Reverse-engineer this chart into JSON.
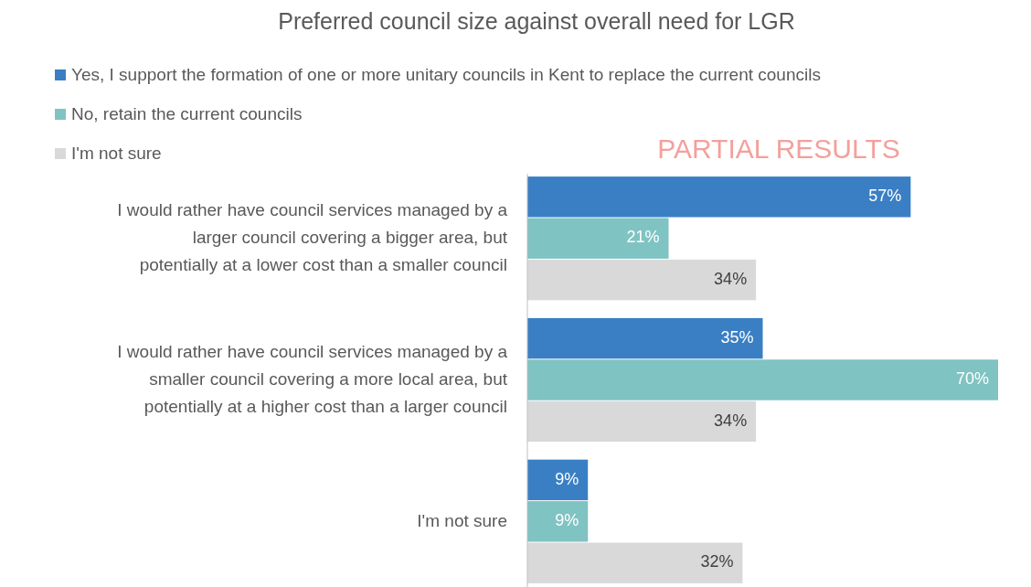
{
  "chart_data": {
    "type": "bar",
    "orientation": "horizontal",
    "title": "Preferred council size against overall need for LGR",
    "categories": [
      "I would rather have council services managed by a larger council covering a bigger area, but potentially at a lower cost than a smaller council",
      "I would rather have council services managed by a smaller council covering a more local area, but potentially at a higher cost than a larger council",
      "I'm not sure"
    ],
    "series": [
      {
        "name": "Yes, I support the formation of one or more unitary councils in Kent to replace the current councils",
        "color": "#3a7fc4",
        "values": [
          57,
          35,
          9
        ],
        "value_labels": [
          "57%",
          "35%",
          "9%"
        ]
      },
      {
        "name": "No, retain the current councils",
        "color": "#7fc3c2",
        "values": [
          21,
          70,
          9
        ],
        "value_labels": [
          "21%",
          "70%",
          "9%"
        ]
      },
      {
        "name": "I'm not sure",
        "color": "#d9d9d9",
        "values": [
          34,
          34,
          32
        ],
        "value_labels": [
          "34%",
          "34%",
          "32%"
        ]
      }
    ],
    "legend": "top left",
    "annotations": [
      "PARTIAL RESULTS"
    ]
  }
}
